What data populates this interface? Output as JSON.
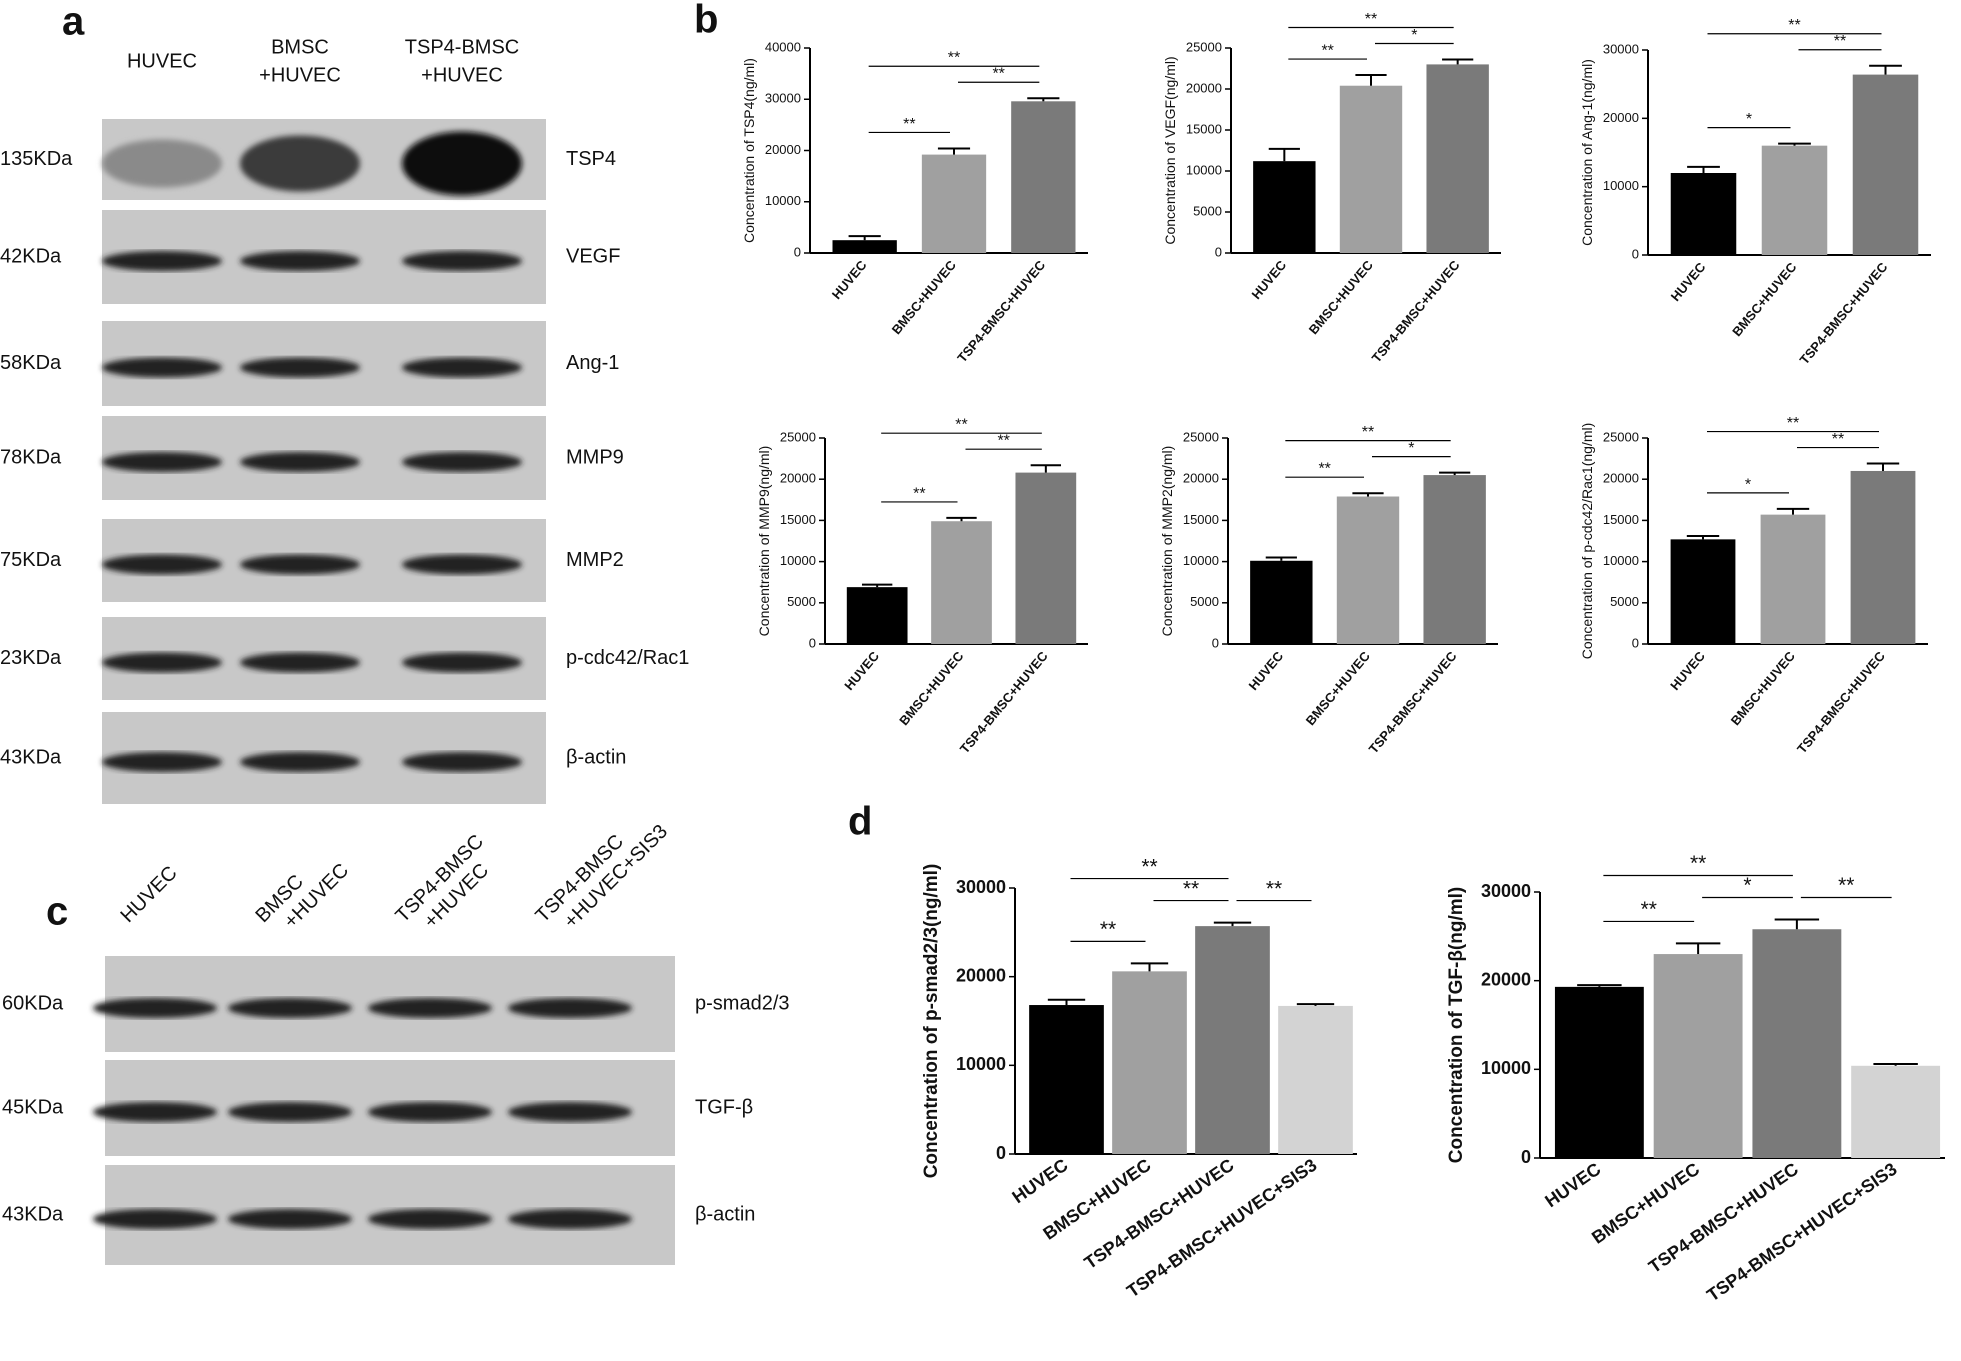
{
  "panel_labels": [
    "a",
    "b",
    "c",
    "d"
  ],
  "blot_a": {
    "lanes": [
      [
        "HUVEC"
      ],
      [
        "BMSC",
        "+HUVEC"
      ],
      [
        "TSP4-BMSC",
        "+HUVEC"
      ]
    ],
    "rows": [
      {
        "kda": "135KDa",
        "protein": "TSP4"
      },
      {
        "kda": "42KDa",
        "protein": "VEGF"
      },
      {
        "kda": "58KDa",
        "protein": "Ang-1"
      },
      {
        "kda": "78KDa",
        "protein": "MMP9"
      },
      {
        "kda": "75KDa",
        "protein": "MMP2"
      },
      {
        "kda": "23KDa",
        "protein": "p-cdc42/Rac1"
      },
      {
        "kda": "43KDa",
        "protein": "β-actin"
      }
    ]
  },
  "blot_c": {
    "lanes": [
      [
        "HUVEC"
      ],
      [
        "BMSC",
        "+HUVEC"
      ],
      [
        "TSP4-BMSC",
        "+HUVEC"
      ],
      [
        "TSP4-BMSC",
        "+HUVEC+SIS3"
      ]
    ],
    "rows": [
      {
        "kda": "60KDa",
        "protein": "p-smad2/3"
      },
      {
        "kda": "45KDa",
        "protein": "TGF-β"
      },
      {
        "kda": "43KDa",
        "protein": "β-actin"
      }
    ]
  },
  "chart_data": [
    {
      "type": "bar",
      "ylabel": "Concentration of TSP4(ng/ml)",
      "categories": [
        "HUVEC",
        "BMSC+HUVEC",
        "TSP4-BMSC+HUVEC"
      ],
      "values": [
        2500,
        19200,
        29600
      ],
      "errors": [
        800,
        1200,
        600
      ],
      "colors": [
        "#000000",
        "#a0a0a0",
        "#7a7a7a"
      ],
      "ylim": [
        0,
        40000
      ],
      "yticks": [
        0,
        10000,
        20000,
        30000,
        40000
      ],
      "significance": [
        {
          "from": 0,
          "to": 1,
          "label": "**"
        },
        {
          "from": 1,
          "to": 2,
          "label": "**"
        },
        {
          "from": 0,
          "to": 2,
          "label": "**"
        }
      ]
    },
    {
      "type": "bar",
      "ylabel": "Concentration of VEGF(ng/ml)",
      "categories": [
        "HUVEC",
        "BMSC+HUVEC",
        "TSP4-BMSC+HUVEC"
      ],
      "values": [
        11200,
        20400,
        23000
      ],
      "errors": [
        1500,
        1300,
        600
      ],
      "colors": [
        "#000000",
        "#a0a0a0",
        "#7a7a7a"
      ],
      "ylim": [
        0,
        25000
      ],
      "yticks": [
        0,
        5000,
        10000,
        15000,
        20000,
        25000
      ],
      "significance": [
        {
          "from": 0,
          "to": 1,
          "label": "**"
        },
        {
          "from": 1,
          "to": 2,
          "label": "*"
        },
        {
          "from": 0,
          "to": 2,
          "label": "**"
        }
      ]
    },
    {
      "type": "bar",
      "ylabel": "Concentration of Ang-1(ng/ml)",
      "categories": [
        "HUVEC",
        "BMSC+HUVEC",
        "TSP4-BMSC+HUVEC"
      ],
      "values": [
        12000,
        16000,
        26400
      ],
      "errors": [
        900,
        300,
        1300
      ],
      "colors": [
        "#000000",
        "#a0a0a0",
        "#7a7a7a"
      ],
      "ylim": [
        0,
        30000
      ],
      "yticks": [
        0,
        10000,
        20000,
        30000
      ],
      "significance": [
        {
          "from": 0,
          "to": 1,
          "label": "*"
        },
        {
          "from": 1,
          "to": 2,
          "label": "**"
        },
        {
          "from": 0,
          "to": 2,
          "label": "**"
        }
      ]
    },
    {
      "type": "bar",
      "ylabel": "Concentration of MMP9(ng/ml)",
      "categories": [
        "HUVEC",
        "BMSC+HUVEC",
        "TSP4-BMSC+HUVEC"
      ],
      "values": [
        6900,
        14900,
        20800
      ],
      "errors": [
        300,
        400,
        900
      ],
      "colors": [
        "#000000",
        "#a0a0a0",
        "#7a7a7a"
      ],
      "ylim": [
        0,
        25000
      ],
      "yticks": [
        0,
        5000,
        10000,
        15000,
        20000,
        25000
      ],
      "significance": [
        {
          "from": 0,
          "to": 1,
          "label": "**"
        },
        {
          "from": 1,
          "to": 2,
          "label": "**"
        },
        {
          "from": 0,
          "to": 2,
          "label": "**"
        }
      ]
    },
    {
      "type": "bar",
      "ylabel": "Concentration of MMP2(ng/ml)",
      "categories": [
        "HUVEC",
        "BMSC+HUVEC",
        "TSP4-BMSC+HUVEC"
      ],
      "values": [
        10100,
        17900,
        20500
      ],
      "errors": [
        400,
        400,
        300
      ],
      "colors": [
        "#000000",
        "#a0a0a0",
        "#7a7a7a"
      ],
      "ylim": [
        0,
        25000
      ],
      "yticks": [
        0,
        5000,
        10000,
        15000,
        20000,
        25000
      ],
      "significance": [
        {
          "from": 0,
          "to": 1,
          "label": "**"
        },
        {
          "from": 1,
          "to": 2,
          "label": "*"
        },
        {
          "from": 0,
          "to": 2,
          "label": "**"
        }
      ]
    },
    {
      "type": "bar",
      "ylabel": "Concentration of p-cdc42/Rac1(ng/ml)",
      "categories": [
        "HUVEC",
        "BMSC+HUVEC",
        "TSP4-BMSC+HUVEC"
      ],
      "values": [
        12700,
        15700,
        21000
      ],
      "errors": [
        400,
        700,
        900
      ],
      "colors": [
        "#000000",
        "#a0a0a0",
        "#7a7a7a"
      ],
      "ylim": [
        0,
        25000
      ],
      "yticks": [
        0,
        5000,
        10000,
        15000,
        20000,
        25000
      ],
      "significance": [
        {
          "from": 0,
          "to": 1,
          "label": "*"
        },
        {
          "from": 1,
          "to": 2,
          "label": "**"
        },
        {
          "from": 0,
          "to": 2,
          "label": "**"
        }
      ]
    },
    {
      "type": "bar",
      "ylabel": "Concentration of p-smad2/3(ng/ml)",
      "categories": [
        "HUVEC",
        "BMSC+HUVEC",
        "TSP4-BMSC+HUVEC",
        "TSP4-BMSC+HUVEC+SIS3"
      ],
      "values": [
        16800,
        20600,
        25700,
        16700
      ],
      "errors": [
        600,
        900,
        400,
        200
      ],
      "colors": [
        "#000000",
        "#a0a0a0",
        "#7a7a7a",
        "#d3d3d3"
      ],
      "ylim": [
        0,
        30000
      ],
      "yticks": [
        0,
        10000,
        20000,
        30000
      ],
      "significance": [
        {
          "from": 0,
          "to": 1,
          "label": "**"
        },
        {
          "from": 1,
          "to": 2,
          "label": "**"
        },
        {
          "from": 2,
          "to": 3,
          "label": "**"
        },
        {
          "from": 0,
          "to": 2,
          "label": "**"
        }
      ]
    },
    {
      "type": "bar",
      "ylabel": "Concentration of TGF-β(ng/ml)",
      "categories": [
        "HUVEC",
        "BMSC+HUVEC",
        "TSP4-BMSC+HUVEC",
        "TSP4-BMSC+HUVEC+SIS3"
      ],
      "values": [
        19300,
        23000,
        25800,
        10400
      ],
      "errors": [
        200,
        1200,
        1100,
        200
      ],
      "colors": [
        "#000000",
        "#a0a0a0",
        "#7a7a7a",
        "#d3d3d3"
      ],
      "ylim": [
        0,
        30000
      ],
      "yticks": [
        0,
        10000,
        20000,
        30000
      ],
      "significance": [
        {
          "from": 0,
          "to": 1,
          "label": "**"
        },
        {
          "from": 1,
          "to": 2,
          "label": "*"
        },
        {
          "from": 2,
          "to": 3,
          "label": "**"
        },
        {
          "from": 0,
          "to": 2,
          "label": "**"
        }
      ]
    }
  ]
}
